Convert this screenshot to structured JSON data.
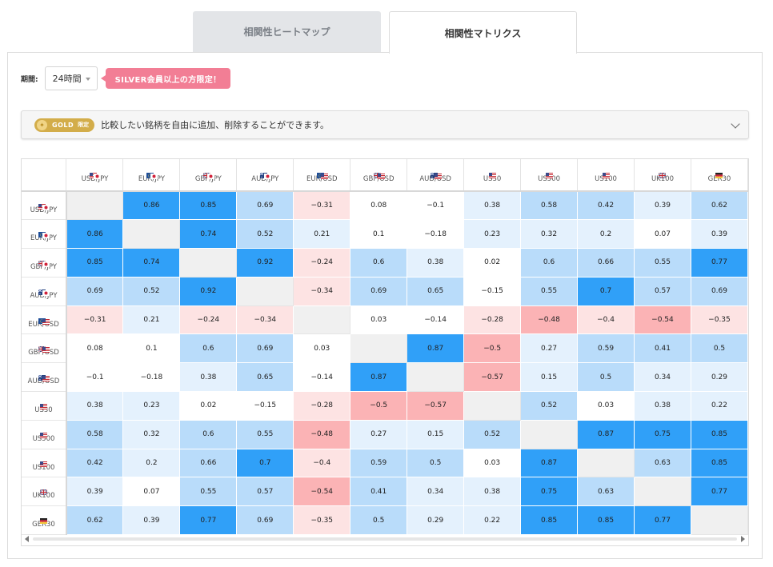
{
  "tabs": [
    {
      "label": "相関性ヒートマップ",
      "active": false
    },
    {
      "label": "相関性マトリクス",
      "active": true
    }
  ],
  "period": {
    "label": "期間:",
    "value": "24時間",
    "badge": "SILVER会員以上の方限定！"
  },
  "gold": {
    "badge_main": "GOLD",
    "badge_sub": "限定",
    "text": "比較したい銘柄を自由に追加、削除することができます。"
  },
  "colors": {
    "positive_strong": "#30a0f8",
    "positive_mid": "#b9dcfa",
    "positive_weak": "#e4f1fd",
    "neutral": "#ffffff",
    "negative_weak": "#fde3e3",
    "negative_strong": "#fbb3b5",
    "diagonal": "#f0f0f0"
  },
  "icons": {
    "scroll_left": "arrow-left-icon",
    "scroll_right": "arrow-right-icon",
    "expand": "chevron-down-icon"
  },
  "symbols": [
    {
      "label": "USD/JPY",
      "flags": [
        "us",
        "jp"
      ]
    },
    {
      "label": "EUR/JPY",
      "flags": [
        "eu",
        "jp"
      ]
    },
    {
      "label": "GBP/JPY",
      "flags": [
        "gb",
        "jp"
      ]
    },
    {
      "label": "AUD/JPY",
      "flags": [
        "au",
        "jp"
      ]
    },
    {
      "label": "EUR/USD",
      "flags": [
        "eu",
        "us"
      ]
    },
    {
      "label": "GBP/USD",
      "flags": [
        "gb",
        "us"
      ]
    },
    {
      "label": "AUD/USD",
      "flags": [
        "au",
        "us"
      ]
    },
    {
      "label": "US30",
      "flags": [
        "us"
      ]
    },
    {
      "label": "US500",
      "flags": [
        "us"
      ]
    },
    {
      "label": "US100",
      "flags": [
        "us"
      ]
    },
    {
      "label": "UK100",
      "flags": [
        "gb"
      ]
    },
    {
      "label": "GER30",
      "flags": [
        "de"
      ]
    }
  ],
  "matrix": [
    [
      null,
      0.86,
      0.85,
      0.69,
      -0.31,
      0.08,
      -0.1,
      0.38,
      0.58,
      0.42,
      0.39,
      0.62
    ],
    [
      0.86,
      null,
      0.74,
      0.52,
      0.21,
      0.1,
      -0.18,
      0.23,
      0.32,
      0.2,
      0.07,
      0.39
    ],
    [
      0.85,
      0.74,
      null,
      0.92,
      -0.24,
      0.6,
      0.38,
      0.02,
      0.6,
      0.66,
      0.55,
      0.77
    ],
    [
      0.69,
      0.52,
      0.92,
      null,
      -0.34,
      0.69,
      0.65,
      -0.15,
      0.55,
      0.7,
      0.57,
      0.69
    ],
    [
      -0.31,
      0.21,
      -0.24,
      -0.34,
      null,
      0.03,
      -0.14,
      -0.28,
      -0.48,
      -0.4,
      -0.54,
      -0.35
    ],
    [
      0.08,
      0.1,
      0.6,
      0.69,
      0.03,
      null,
      0.87,
      -0.5,
      0.27,
      0.59,
      0.41,
      0.5
    ],
    [
      -0.1,
      -0.18,
      0.38,
      0.65,
      -0.14,
      0.87,
      null,
      -0.57,
      0.15,
      0.5,
      0.34,
      0.29
    ],
    [
      0.38,
      0.23,
      0.02,
      -0.15,
      -0.28,
      -0.5,
      -0.57,
      null,
      0.52,
      0.03,
      0.38,
      0.22
    ],
    [
      0.58,
      0.32,
      0.6,
      0.55,
      -0.48,
      0.27,
      0.15,
      0.52,
      null,
      0.87,
      0.75,
      0.85
    ],
    [
      0.42,
      0.2,
      0.66,
      0.7,
      -0.4,
      0.59,
      0.5,
      0.03,
      0.87,
      null,
      0.63,
      0.85
    ],
    [
      0.39,
      0.07,
      0.55,
      0.57,
      -0.54,
      0.41,
      0.34,
      0.38,
      0.75,
      0.63,
      null,
      0.77
    ],
    [
      0.62,
      0.39,
      0.77,
      0.69,
      -0.35,
      0.5,
      0.29,
      0.22,
      0.85,
      0.85,
      0.77,
      null
    ]
  ]
}
